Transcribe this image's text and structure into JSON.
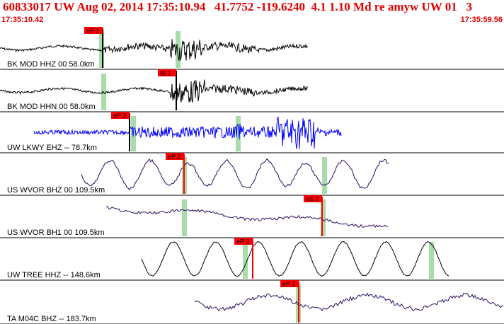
{
  "header": {
    "title": "60833017 UW Aug 02, 2014 17:35:10.94   41.7752 -119.6240  4.1 1.10 Md re amyw UW 01   3",
    "start_time": "17:35:10.42",
    "end_time": "17:35:59.56"
  },
  "colors": {
    "header_text": "#e00000",
    "pick_flag": "#ff0000",
    "pick_window": "#a8dca8",
    "trace_black": "#000000",
    "trace_blue": "#0000ff",
    "trace_purple": "#2a0a5e"
  },
  "traces": [
    {
      "label": "BK MOD HHZ 00 58.0km",
      "color": "black",
      "pick": "eP 2",
      "pick_style": "black-line"
    },
    {
      "label": "BK MOD HHN 00 58.0km",
      "color": "black",
      "pick": "iS 1",
      "pick_style": "black-line"
    },
    {
      "label": "UW LKWY EHZ -- 78.7km",
      "color": "blue",
      "pick": "eP 2",
      "pick_style": "black-line"
    },
    {
      "label": "US WVOR BHZ 00 109.5km",
      "color": "purple",
      "pick": "eP 2",
      "pick_style": "red-line"
    },
    {
      "label": "US WVOR BH1 00 109.5km",
      "color": "purple",
      "pick": "eS 2",
      "pick_style": "red-line"
    },
    {
      "label": "UW TREE HHZ -- 148.6km",
      "color": "black",
      "pick": "eP 2",
      "pick_style": "red-line"
    },
    {
      "label": "TA M04C BHZ -- 183.7km",
      "color": "purple",
      "pick": "eP 2",
      "pick_style": "red-line"
    }
  ]
}
